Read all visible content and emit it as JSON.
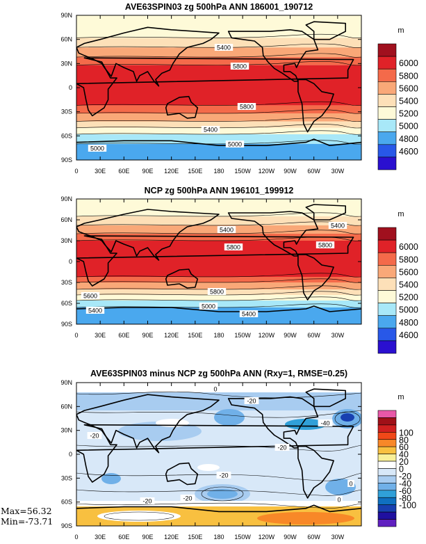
{
  "panels": [
    {
      "title": "AVE63SPIN03 zg 500hPa ANN 186001_190712",
      "unit": "m",
      "colorbar": {
        "labels": [
          "6000",
          "5800",
          "5600",
          "5400",
          "5200",
          "5000",
          "4800",
          "4600"
        ],
        "colors": [
          "#a0101e",
          "#e02228",
          "#f46a4a",
          "#f9a878",
          "#fde0b8",
          "#fefad8",
          "#a8e8f8",
          "#4aa8ee",
          "#2858e8",
          "#2a10d0"
        ]
      },
      "contour_labels": [
        "5400",
        "5800",
        "5800",
        "5400",
        "5000",
        "5000"
      ],
      "bands": [
        {
          "lat0": 90,
          "lat1": 62,
          "color": "#fefad8"
        },
        {
          "lat0": 62,
          "lat1": 50,
          "color": "#fde0b8"
        },
        {
          "lat0": 50,
          "lat1": 38,
          "color": "#f9a878"
        },
        {
          "lat0": 38,
          "lat1": 28,
          "color": "#f46a4a"
        },
        {
          "lat0": 28,
          "lat1": -22,
          "color": "#e02228"
        },
        {
          "lat0": -22,
          "lat1": -32,
          "color": "#f46a4a"
        },
        {
          "lat0": -32,
          "lat1": -42,
          "color": "#f9a878"
        },
        {
          "lat0": -42,
          "lat1": -50,
          "color": "#fde0b8"
        },
        {
          "lat0": -50,
          "lat1": -58,
          "color": "#fefad8"
        },
        {
          "lat0": -58,
          "lat1": -70,
          "color": "#a8e8f8"
        },
        {
          "lat0": -70,
          "lat1": -90,
          "color": "#4aa8ee"
        }
      ]
    },
    {
      "title": "NCP zg 500hPa ANN 196101_199912",
      "unit": "m",
      "colorbar": {
        "labels": [
          "6000",
          "5800",
          "5600",
          "5400",
          "5200",
          "5000",
          "4800",
          "4600"
        ],
        "colors": [
          "#a0101e",
          "#e02228",
          "#f46a4a",
          "#f9a878",
          "#fde0b8",
          "#fefad8",
          "#a8e8f8",
          "#4aa8ee",
          "#2858e8",
          "#2a10d0"
        ]
      },
      "contour_labels": [
        "5400",
        "5400",
        "5800",
        "5800",
        "5800",
        "5600",
        "5400",
        "5400",
        "5000"
      ],
      "bands": [
        {
          "lat0": 90,
          "lat1": 65,
          "color": "#fefad8"
        },
        {
          "lat0": 65,
          "lat1": 52,
          "color": "#fde0b8"
        },
        {
          "lat0": 52,
          "lat1": 40,
          "color": "#f9a878"
        },
        {
          "lat0": 40,
          "lat1": 30,
          "color": "#f46a4a"
        },
        {
          "lat0": 30,
          "lat1": -22,
          "color": "#e02228"
        },
        {
          "lat0": -22,
          "lat1": -30,
          "color": "#f46a4a"
        },
        {
          "lat0": -30,
          "lat1": -40,
          "color": "#f9a878"
        },
        {
          "lat0": -40,
          "lat1": -48,
          "color": "#fde0b8"
        },
        {
          "lat0": -48,
          "lat1": -56,
          "color": "#fefad8"
        },
        {
          "lat0": -56,
          "lat1": -66,
          "color": "#a8e8f8"
        },
        {
          "lat0": -66,
          "lat1": -90,
          "color": "#4aa8ee"
        }
      ]
    },
    {
      "title": "AVE63SPIN03 minus NCP zg 500hPa ANN (Rxy=1, RMSE=0.25)",
      "unit": "m",
      "colorbar": {
        "labels": [
          "100",
          "80",
          "60",
          "40",
          "20",
          "0",
          "-20",
          "-40",
          "-60",
          "-80",
          "-100"
        ],
        "colors": [
          "#e858a8",
          "#a01018",
          "#d02020",
          "#f04818",
          "#f88828",
          "#f8c040",
          "#f8f098",
          "#ffffff",
          "#d8e8f8",
          "#a8ccf0",
          "#70b0e8",
          "#30a0d8",
          "#1070c0",
          "#1840b0",
          "#2010a0",
          "#6020c0"
        ]
      },
      "contour_labels": [
        "0",
        "-20",
        "-40",
        "-20",
        "-20",
        "-20",
        "-20",
        "-20",
        "0",
        "0"
      ],
      "stats": {
        "max": "Max=56.32",
        "min": "Min=-73.71"
      }
    }
  ],
  "axes": {
    "y_ticks": [
      "90N",
      "60N",
      "30N",
      "0",
      "30S",
      "60S",
      "90S"
    ],
    "x_ticks": [
      "0",
      "30E",
      "60E",
      "90E",
      "120E",
      "150E",
      "180",
      "150W",
      "120W",
      "90W",
      "60W",
      "30W"
    ]
  }
}
